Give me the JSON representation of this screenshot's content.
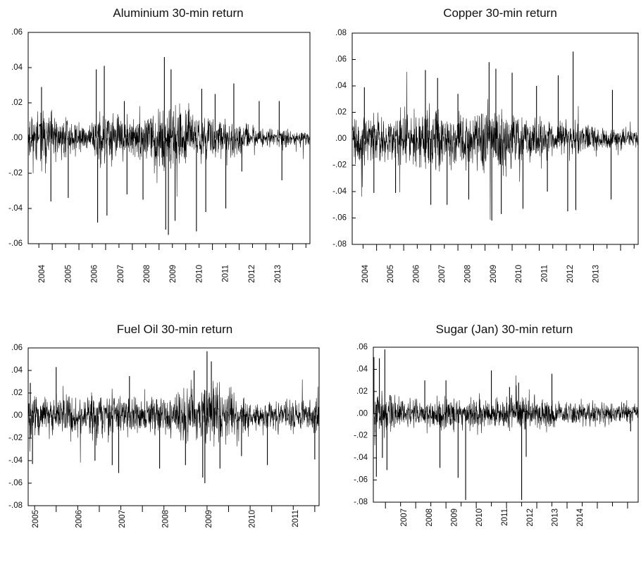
{
  "chart_data": [
    {
      "type": "line",
      "title": "Aluminium 30-min return",
      "yticks": [
        ".06",
        ".04",
        ".02",
        ".00",
        "-.02",
        "-.04",
        "-.06"
      ],
      "ylim": [
        -0.06,
        0.06
      ],
      "xticks": [
        "2004",
        "2005",
        "2006",
        "2007",
        "2008",
        "2009",
        "2010",
        "2011",
        "2012",
        "2013"
      ],
      "x_range": [
        2003.6,
        2014.15
      ],
      "noise_level": 0.006,
      "volatility": [
        [
          2003.6,
          0.0065
        ],
        [
          2004.3,
          0.007
        ],
        [
          2005.3,
          0.0045
        ],
        [
          2005.9,
          0.003
        ],
        [
          2006.1,
          0.008
        ],
        [
          2006.6,
          0.0075
        ],
        [
          2007.0,
          0.0055
        ],
        [
          2008.0,
          0.006
        ],
        [
          2008.6,
          0.009
        ],
        [
          2009.0,
          0.009
        ],
        [
          2009.6,
          0.0065
        ],
        [
          2010.1,
          0.006
        ],
        [
          2011.0,
          0.0055
        ],
        [
          2011.7,
          0.004
        ],
        [
          2012.2,
          0.0025
        ],
        [
          2013.0,
          0.0025
        ],
        [
          2014.15,
          0.0022
        ]
      ],
      "spikes": [
        [
          2004.1,
          0.029
        ],
        [
          2004.45,
          -0.036
        ],
        [
          2005.1,
          -0.034
        ],
        [
          2006.15,
          0.039
        ],
        [
          2006.2,
          -0.048
        ],
        [
          2006.45,
          0.041
        ],
        [
          2006.55,
          -0.044
        ],
        [
          2007.2,
          0.021
        ],
        [
          2007.3,
          -0.032
        ],
        [
          2007.9,
          -0.035
        ],
        [
          2008.7,
          0.046
        ],
        [
          2008.75,
          -0.052
        ],
        [
          2008.85,
          -0.055
        ],
        [
          2008.95,
          0.039
        ],
        [
          2009.1,
          -0.047
        ],
        [
          2009.9,
          -0.053
        ],
        [
          2010.1,
          0.028
        ],
        [
          2010.25,
          -0.042
        ],
        [
          2010.6,
          0.025
        ],
        [
          2011.0,
          -0.04
        ],
        [
          2011.3,
          0.031
        ],
        [
          2011.6,
          -0.019
        ],
        [
          2012.25,
          0.021
        ],
        [
          2013.0,
          0.021
        ],
        [
          2013.1,
          -0.024
        ]
      ],
      "seed": 11
    },
    {
      "type": "line",
      "title": "Copper 30-min return",
      "yticks": [
        ".08",
        ".06",
        ".04",
        ".02",
        ".00",
        "-.02",
        "-.04",
        "-.06",
        "-.08"
      ],
      "ylim": [
        -0.08,
        0.08
      ],
      "xticks": [
        "2004",
        "2005",
        "2006",
        "2007",
        "2008",
        "2009",
        "2010",
        "2011",
        "2012",
        "2013"
      ],
      "x_range": [
        2003.6,
        2014.15
      ],
      "noise_level": 0.008,
      "volatility": [
        [
          2003.6,
          0.009
        ],
        [
          2005.0,
          0.0085
        ],
        [
          2006.0,
          0.0095
        ],
        [
          2006.6,
          0.011
        ],
        [
          2007.5,
          0.009
        ],
        [
          2008.6,
          0.012
        ],
        [
          2009.2,
          0.011
        ],
        [
          2010.0,
          0.0085
        ],
        [
          2011.0,
          0.008
        ],
        [
          2012.0,
          0.0055
        ],
        [
          2013.0,
          0.004
        ],
        [
          2014.15,
          0.0035
        ]
      ],
      "spikes": [
        [
          2004.05,
          0.039
        ],
        [
          2004.4,
          -0.041
        ],
        [
          2005.2,
          -0.041
        ],
        [
          2006.3,
          0.052
        ],
        [
          2006.5,
          -0.05
        ],
        [
          2006.75,
          0.046
        ],
        [
          2007.1,
          -0.05
        ],
        [
          2007.5,
          0.034
        ],
        [
          2007.9,
          -0.046
        ],
        [
          2008.65,
          0.058
        ],
        [
          2008.75,
          -0.062
        ],
        [
          2008.9,
          0.053
        ],
        [
          2009.1,
          -0.057
        ],
        [
          2009.5,
          0.05
        ],
        [
          2009.9,
          -0.053
        ],
        [
          2010.4,
          0.04
        ],
        [
          2010.8,
          -0.04
        ],
        [
          2011.2,
          0.048
        ],
        [
          2011.55,
          -0.055
        ],
        [
          2011.75,
          0.066
        ],
        [
          2011.85,
          -0.054
        ],
        [
          2013.15,
          -0.046
        ],
        [
          2013.2,
          0.037
        ]
      ],
      "seed": 22
    },
    {
      "type": "line",
      "title": "Fuel Oil 30-min return",
      "yticks": [
        ".06",
        ".04",
        ".02",
        ".00",
        "-.02",
        "-.04",
        "-.06",
        "-.08"
      ],
      "ylim": [
        -0.08,
        0.06
      ],
      "xticks": [
        "2005",
        "2006",
        "2007",
        "2008",
        "2009",
        "2010",
        "2011"
      ],
      "x_range": [
        2004.85,
        2011.6
      ],
      "noise_level": 0.008,
      "volatility": [
        [
          2004.85,
          0.009
        ],
        [
          2005.5,
          0.008
        ],
        [
          2006.0,
          0.0085
        ],
        [
          2006.8,
          0.009
        ],
        [
          2007.5,
          0.008
        ],
        [
          2008.2,
          0.009
        ],
        [
          2008.7,
          0.013
        ],
        [
          2009.0,
          0.014
        ],
        [
          2009.3,
          0.011
        ],
        [
          2009.8,
          0.0085
        ],
        [
          2010.3,
          0.005
        ],
        [
          2010.7,
          0.007
        ],
        [
          2011.6,
          0.0065
        ]
      ],
      "spikes": [
        [
          2004.9,
          0.029
        ],
        [
          2004.95,
          -0.043
        ],
        [
          2005.5,
          0.043
        ],
        [
          2006.4,
          -0.04
        ],
        [
          2006.8,
          -0.044
        ],
        [
          2006.95,
          -0.051
        ],
        [
          2007.2,
          0.035
        ],
        [
          2007.9,
          -0.047
        ],
        [
          2008.5,
          -0.044
        ],
        [
          2008.7,
          0.04
        ],
        [
          2008.9,
          -0.055
        ],
        [
          2008.95,
          -0.06
        ],
        [
          2009.0,
          0.057
        ],
        [
          2009.1,
          0.048
        ],
        [
          2009.3,
          -0.047
        ],
        [
          2009.8,
          -0.036
        ],
        [
          2010.4,
          -0.044
        ],
        [
          2011.5,
          -0.039
        ]
      ],
      "seed": 33
    },
    {
      "type": "line",
      "title": "Sugar (Jan) 30-min return",
      "yticks": [
        ".06",
        ".04",
        ".02",
        ".00",
        "-.02",
        "-.04",
        "-.06",
        "-.08"
      ],
      "ylim": [
        -0.08,
        0.06
      ],
      "xticks": [
        "2007",
        "2008",
        "2009",
        "2010",
        "2011",
        "2012",
        "2013",
        "2014"
      ],
      "x_range": [
        2006.1,
        2014.85
      ],
      "noise_level": 0.007,
      "volatility": [
        [
          2006.1,
          0.012
        ],
        [
          2006.5,
          0.009
        ],
        [
          2007.0,
          0.006
        ],
        [
          2008.0,
          0.006
        ],
        [
          2008.5,
          0.0085
        ],
        [
          2009.0,
          0.0065
        ],
        [
          2010.0,
          0.0075
        ],
        [
          2010.5,
          0.0065
        ],
        [
          2011.0,
          0.0075
        ],
        [
          2012.0,
          0.0065
        ],
        [
          2012.5,
          0.0055
        ],
        [
          2013.0,
          0.005
        ],
        [
          2014.85,
          0.0045
        ]
      ],
      "spikes": [
        [
          2006.12,
          0.051
        ],
        [
          2006.2,
          -0.057
        ],
        [
          2006.3,
          0.05
        ],
        [
          2006.4,
          -0.04
        ],
        [
          2006.48,
          0.058
        ],
        [
          2006.55,
          -0.051
        ],
        [
          2007.8,
          0.03
        ],
        [
          2008.3,
          -0.049
        ],
        [
          2008.5,
          0.03
        ],
        [
          2008.9,
          -0.058
        ],
        [
          2009.15,
          -0.078
        ],
        [
          2010.0,
          0.039
        ],
        [
          2010.6,
          0.024
        ],
        [
          2010.9,
          0.028
        ],
        [
          2011.0,
          -0.078
        ],
        [
          2011.15,
          -0.039
        ],
        [
          2012.0,
          0.036
        ],
        [
          2014.6,
          -0.016
        ]
      ],
      "seed": 44
    }
  ]
}
